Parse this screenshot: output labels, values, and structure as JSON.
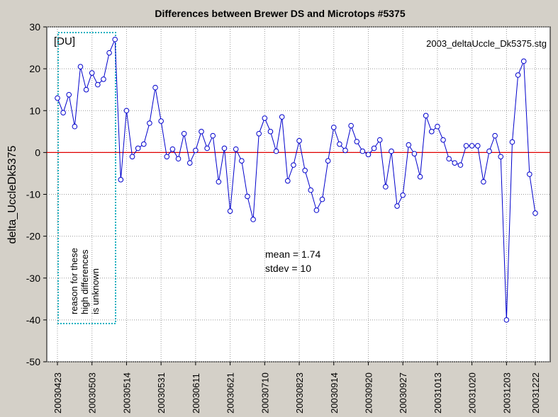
{
  "chart_data": {
    "type": "line",
    "title": "Differences between Brewer DS and Microtops #5375",
    "y_label": "delta_UccleDk5375",
    "annotations": {
      "unit": "[DU]",
      "file": "2003_deltaUccle_Dk5375.stg",
      "mean": "mean = 1.74",
      "stdev": "stdev = 10",
      "note": [
        "reason for these",
        "high differences",
        "is unknown"
      ]
    },
    "categories": [
      "20030423",
      null,
      null,
      null,
      null,
      null,
      "20030503",
      null,
      null,
      null,
      null,
      null,
      "20030514",
      null,
      null,
      null,
      null,
      null,
      "20030531",
      null,
      null,
      null,
      null,
      null,
      "20030611",
      null,
      null,
      null,
      null,
      null,
      "20030621",
      null,
      null,
      null,
      null,
      null,
      "20030710",
      null,
      null,
      null,
      null,
      null,
      "20030823",
      null,
      null,
      null,
      null,
      null,
      "20030914",
      null,
      null,
      null,
      null,
      null,
      "20030920",
      null,
      null,
      null,
      null,
      null,
      "20030927",
      null,
      null,
      null,
      null,
      null,
      "20031013",
      null,
      null,
      null,
      null,
      null,
      "20031020",
      null,
      null,
      null,
      null,
      null,
      "20031203",
      null,
      null,
      null,
      null,
      "20031222"
    ],
    "series": [
      {
        "name": "delta_UccleDk5375",
        "color": "#0000cc",
        "values": [
          13,
          9.5,
          13.8,
          6.2,
          20.5,
          15,
          19,
          16.2,
          17.5,
          23.8,
          27,
          -6.5,
          10,
          -1,
          1,
          2,
          7,
          15.5,
          7.5,
          -1,
          0.8,
          -1.5,
          4.5,
          -2.5,
          0.5,
          5,
          1,
          4,
          -7,
          1,
          -14,
          0.8,
          -2,
          -10.5,
          -16,
          4.5,
          8.2,
          5,
          0.3,
          8.5,
          -6.8,
          -3,
          2.8,
          -4.3,
          -9,
          -13.8,
          -11.2,
          -2,
          6,
          2,
          0.5,
          6.4,
          2.6,
          0.3,
          -0.5,
          1,
          3,
          -8.2,
          0.3,
          -12.8,
          -10.2,
          1.8,
          -0.3,
          -5.8,
          8.8,
          5,
          6.2,
          3,
          -1.5,
          -2.5,
          -3,
          1.6,
          1.6,
          1.6,
          -7,
          0.3,
          4,
          -1,
          -40,
          2.5,
          18.5,
          21.8,
          -5.2,
          -14.5
        ]
      }
    ],
    "reference_line": {
      "value": 0,
      "color": "#e00000"
    },
    "ylim": [
      -50,
      30
    ],
    "yticks": [
      -50,
      -40,
      -30,
      -20,
      -10,
      0,
      10,
      20,
      30
    ],
    "grid": true
  }
}
